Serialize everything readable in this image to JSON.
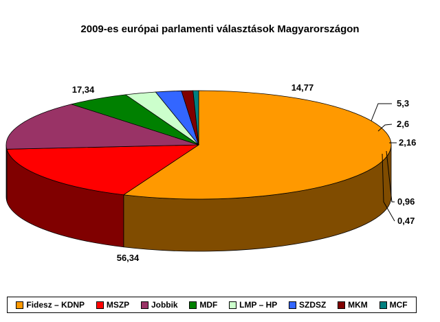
{
  "chart_data": {
    "type": "pie",
    "title": "2009-es európai parlamenti választások Magyarországon",
    "categories": [
      "Fidesz – KDNP",
      "MSZP",
      "Jobbik",
      "MDF",
      "LMP – HP",
      "SZDSZ",
      "MKM",
      "MCF"
    ],
    "values": [
      56.34,
      17.34,
      14.77,
      5.3,
      2.6,
      2.16,
      0.96,
      0.47
    ],
    "data_labels": [
      "56,34",
      "17,34",
      "14,77",
      "5,3",
      "2,6",
      "2,16",
      "0,96",
      "0,47"
    ],
    "colors": [
      "#FF9900",
      "#FF0000",
      "#993366",
      "#008000",
      "#CCFFCC",
      "#3366FF",
      "#800000",
      "#008080"
    ],
    "side_colors": [
      "#804C00",
      "#800000",
      "#4D1A33",
      "#004000",
      "#668066",
      "#1A3380",
      "#400000",
      "#004040"
    ],
    "legend_position": "bottom",
    "style": "3d"
  }
}
